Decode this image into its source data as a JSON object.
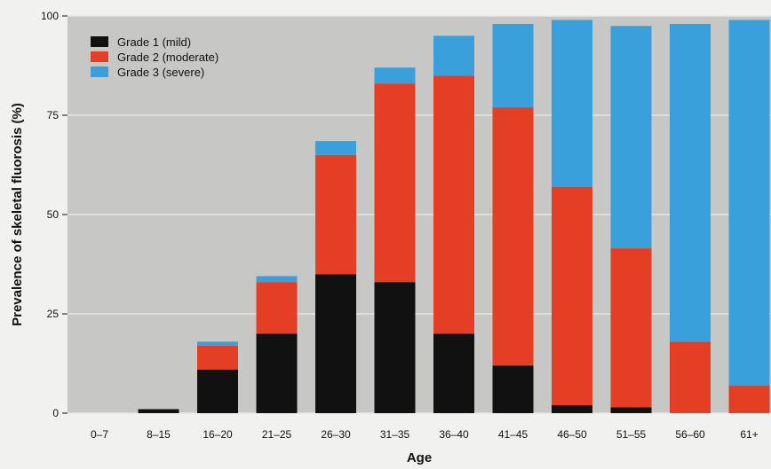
{
  "chart_data": {
    "type": "bar",
    "stacked": true,
    "title": "",
    "xlabel": "Age",
    "ylabel": "Prevalence of skeletal fluorosis (%)",
    "ylim": [
      0,
      100
    ],
    "yticks": [
      0,
      25,
      50,
      75,
      100
    ],
    "grid": true,
    "legend_position": "top-left",
    "categories": [
      "0–7",
      "8–15",
      "16–20",
      "21–25",
      "26–30",
      "31–35",
      "36–40",
      "41–45",
      "46–50",
      "51–55",
      "56–60",
      "61+"
    ],
    "series": [
      {
        "name": "Grade 1 (mild)",
        "color": "#111111",
        "values": [
          0,
          1,
          11,
          20,
          35,
          33,
          20,
          12,
          2,
          1.5,
          0,
          0
        ]
      },
      {
        "name": "Grade 2 (moderate)",
        "color": "#e43f24",
        "values": [
          0,
          0,
          6,
          13,
          30,
          50,
          65,
          65,
          55,
          40,
          18,
          7
        ]
      },
      {
        "name": "Grade 3 (severe)",
        "color": "#3aa0dc",
        "values": [
          0,
          0,
          1,
          1.5,
          3.5,
          4,
          10,
          21,
          42,
          56,
          80,
          92
        ]
      }
    ]
  }
}
